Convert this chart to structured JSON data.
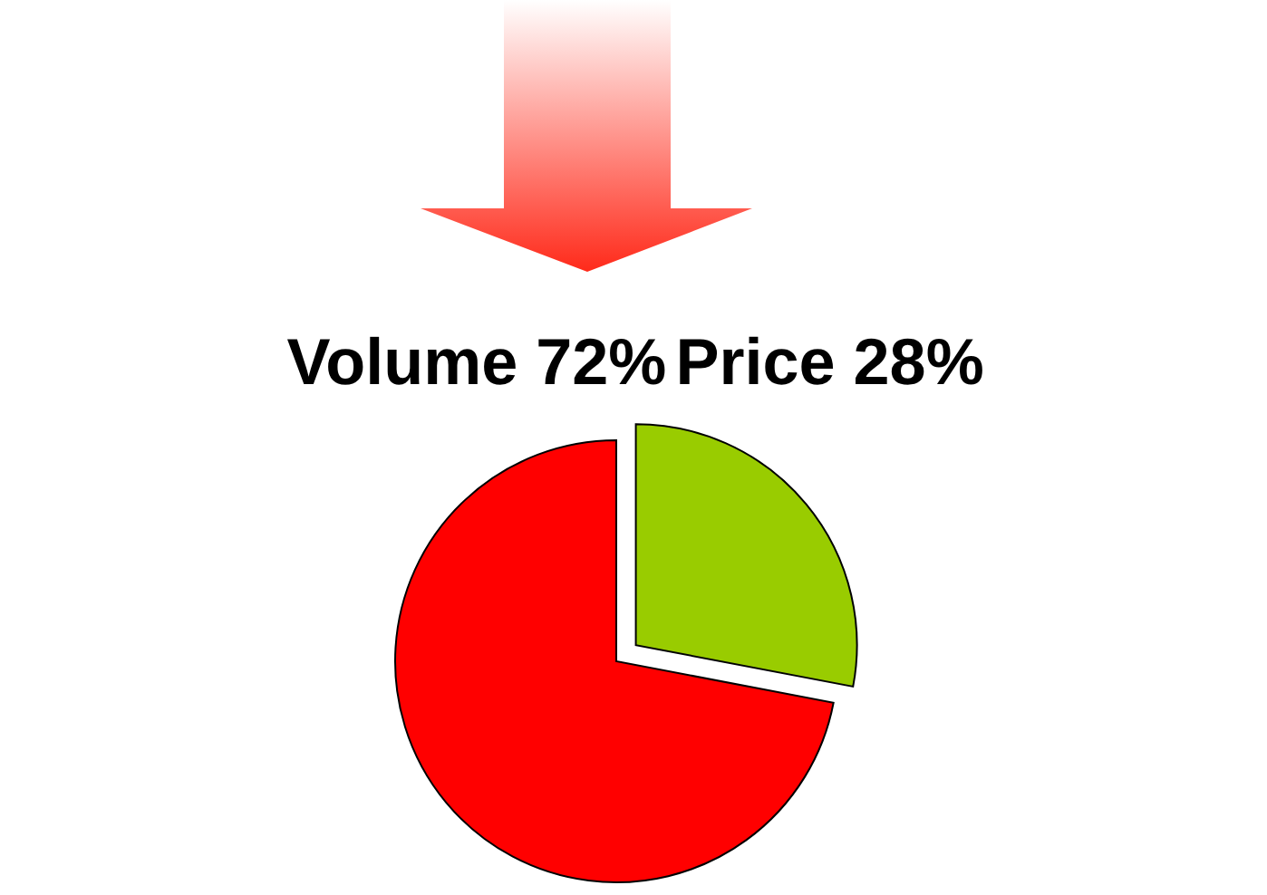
{
  "chart_data": {
    "type": "pie",
    "categories": [
      "Volume",
      "Price"
    ],
    "values": [
      72,
      28
    ],
    "value_labels": [
      "72%",
      "28%"
    ],
    "colors": [
      "#ff0000",
      "#99cc00"
    ]
  }
}
